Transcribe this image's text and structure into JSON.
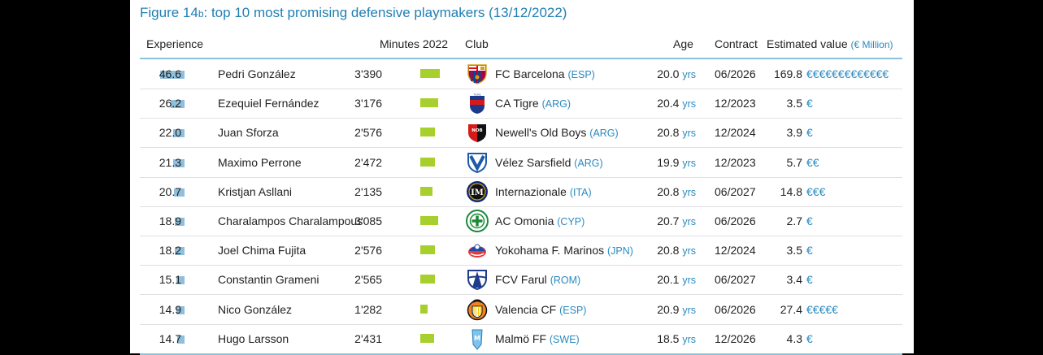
{
  "figure": {
    "prefix": "Figure 14",
    "suffix": "b",
    "title": ": top 10 most promising defensive playmakers (13/12/2022)"
  },
  "headers": {
    "experience": "Experience",
    "minutes": "Minutes 2022",
    "club": "Club",
    "age": "Age",
    "contract": "Contract",
    "value": "Estimated value",
    "value_unit": "(€ Million)"
  },
  "colors": {
    "title": "#1f7fb3",
    "experience_bar": "#8fbfdc",
    "minutes_bar": "#a7cf2e",
    "accent_text": "#2a8ac0"
  },
  "experience_scale_max": 46.6,
  "minutes_scale_max": 3390,
  "rows": [
    {
      "experience": 46.6,
      "experience_label": "46.6",
      "player": "Pedri González",
      "minutes": 3390,
      "minutes_label": "3'390",
      "club": "FC Barcelona",
      "country": "(ESP)",
      "logo": "fc-barcelona-crest-icon",
      "age": "20.0",
      "age_unit": "yrs",
      "contract": "06/2026",
      "value": "169.8",
      "euros": "€€€€€€€€€€€€€"
    },
    {
      "experience": 26.2,
      "experience_label": "26.2",
      "player": "Ezequiel Fernández",
      "minutes": 3176,
      "minutes_label": "3'176",
      "club": "CA Tigre",
      "country": "(ARG)",
      "logo": "ca-tigre-crest-icon",
      "age": "20.4",
      "age_unit": "yrs",
      "contract": "12/2023",
      "value": "3.5",
      "euros": "€"
    },
    {
      "experience": 22.0,
      "experience_label": "22.0",
      "player": "Juan Sforza",
      "minutes": 2576,
      "minutes_label": "2'576",
      "club": "Newell's Old Boys",
      "country": "(ARG)",
      "logo": "newells-old-boys-crest-icon",
      "age": "20.8",
      "age_unit": "yrs",
      "contract": "12/2024",
      "value": "3.9",
      "euros": "€"
    },
    {
      "experience": 21.3,
      "experience_label": "21.3",
      "player": "Maximo Perrone",
      "minutes": 2472,
      "minutes_label": "2'472",
      "club": "Vélez Sarsfield",
      "country": "(ARG)",
      "logo": "velez-sarsfield-crest-icon",
      "age": "19.9",
      "age_unit": "yrs",
      "contract": "12/2023",
      "value": "5.7",
      "euros": "€€"
    },
    {
      "experience": 20.7,
      "experience_label": "20.7",
      "player": "Kristjan Asllani",
      "minutes": 2135,
      "minutes_label": "2'135",
      "club": "Internazionale",
      "country": "(ITA)",
      "logo": "internazionale-crest-icon",
      "age": "20.8",
      "age_unit": "yrs",
      "contract": "06/2027",
      "value": "14.8",
      "euros": "€€€"
    },
    {
      "experience": 18.9,
      "experience_label": "18.9",
      "player": "Charalampos Charalampous",
      "minutes": 3085,
      "minutes_label": "3'085",
      "club": "AC Omonia",
      "country": "(CYP)",
      "logo": "ac-omonia-crest-icon",
      "age": "20.7",
      "age_unit": "yrs",
      "contract": "06/2026",
      "value": "2.7",
      "euros": "€"
    },
    {
      "experience": 18.2,
      "experience_label": "18.2",
      "player": "Joel Chima Fujita",
      "minutes": 2576,
      "minutes_label": "2'576",
      "club": "Yokohama F. Marinos",
      "country": "(JPN)",
      "logo": "yokohama-f-marinos-crest-icon",
      "age": "20.8",
      "age_unit": "yrs",
      "contract": "12/2024",
      "value": "3.5",
      "euros": "€"
    },
    {
      "experience": 15.1,
      "experience_label": "15.1",
      "player": "Constantin Grameni",
      "minutes": 2565,
      "minutes_label": "2'565",
      "club": "FCV Farul",
      "country": "(ROM)",
      "logo": "fcv-farul-crest-icon",
      "age": "20.1",
      "age_unit": "yrs",
      "contract": "06/2027",
      "value": "3.4",
      "euros": "€"
    },
    {
      "experience": 14.9,
      "experience_label": "14.9",
      "player": "Nico González",
      "minutes": 1282,
      "minutes_label": "1'282",
      "club": "Valencia CF",
      "country": "(ESP)",
      "logo": "valencia-cf-crest-icon",
      "age": "20.9",
      "age_unit": "yrs",
      "contract": "06/2026",
      "value": "27.4",
      "euros": "€€€€€"
    },
    {
      "experience": 14.7,
      "experience_label": "14.7",
      "player": "Hugo Larsson",
      "minutes": 2431,
      "minutes_label": "2'431",
      "club": "Malmö FF",
      "country": "(SWE)",
      "logo": "malmo-ff-crest-icon",
      "age": "18.5",
      "age_unit": "yrs",
      "contract": "12/2026",
      "value": "4.3",
      "euros": "€"
    }
  ]
}
